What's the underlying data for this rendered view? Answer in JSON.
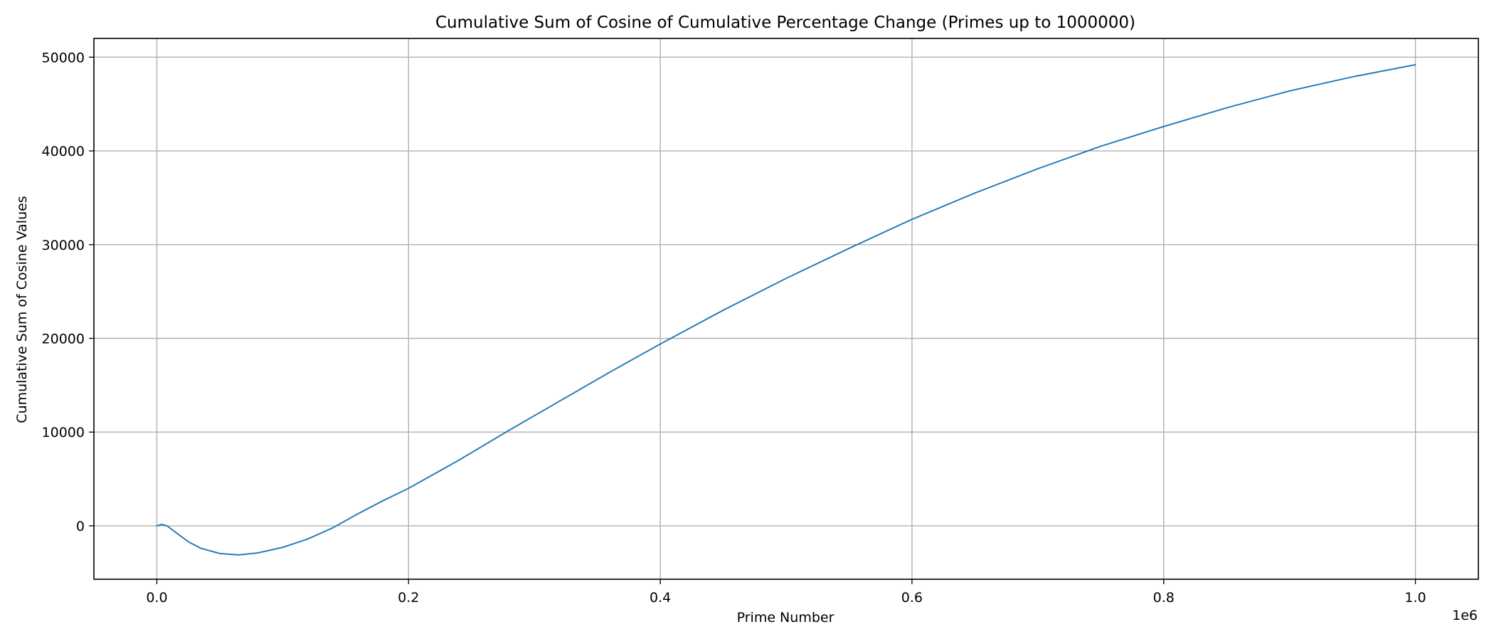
{
  "chart_data": {
    "type": "line",
    "title": "Cumulative Sum of Cosine of Cumulative Percentage Change (Primes up to 1000000)",
    "xlabel": "Prime Number",
    "ylabel": "Cumulative Sum of Cosine Values",
    "x_offset_label": "1e6",
    "xlim": [
      -0.05,
      1.05
    ],
    "ylim": [
      -5700,
      52000
    ],
    "x_ticks": [
      0.0,
      0.2,
      0.4,
      0.6,
      0.8,
      1.0
    ],
    "x_tick_labels": [
      "0.0",
      "0.2",
      "0.4",
      "0.6",
      "0.8",
      "1.0"
    ],
    "y_ticks": [
      0,
      10000,
      20000,
      30000,
      40000,
      50000
    ],
    "y_tick_labels": [
      "0",
      "10000",
      "20000",
      "30000",
      "40000",
      "50000"
    ],
    "grid": true,
    "legend": "none",
    "colors": {
      "series": "#1f77b4"
    },
    "series": [
      {
        "x": [
          0.0,
          0.004,
          0.008,
          0.015,
          0.025,
          0.035,
          0.05,
          0.065,
          0.08,
          0.1,
          0.12,
          0.14,
          0.16,
          0.18,
          0.2,
          0.24,
          0.28,
          0.32,
          0.36,
          0.4,
          0.45,
          0.5,
          0.55,
          0.6,
          0.65,
          0.7,
          0.75,
          0.8,
          0.85,
          0.9,
          0.95,
          1.0
        ],
        "values": [
          0,
          150,
          0,
          -700,
          -1700,
          -2400,
          -2950,
          -3100,
          -2900,
          -2300,
          -1400,
          -200,
          1300,
          2700,
          4000,
          7000,
          10200,
          13300,
          16400,
          19400,
          23000,
          26400,
          29600,
          32700,
          35500,
          38100,
          40500,
          42600,
          44600,
          46400,
          47900,
          49200
        ]
      }
    ]
  }
}
